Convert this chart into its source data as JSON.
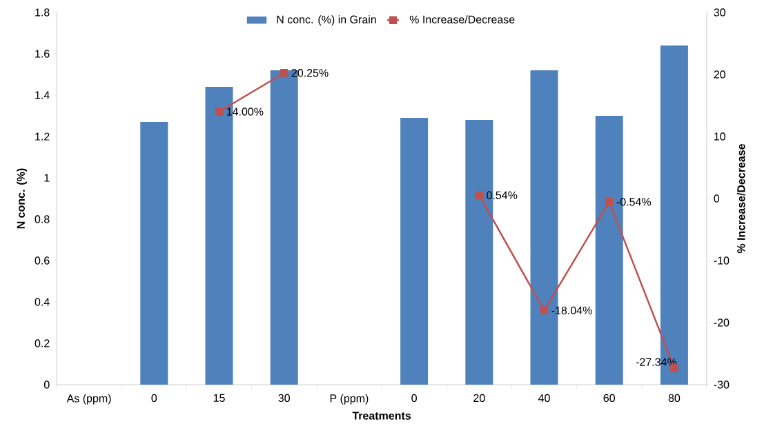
{
  "chart_data": {
    "type": "bar",
    "xlabel": "Treatments",
    "ylabel": "N conc. (%)",
    "y2label": "% Increase/Decrease",
    "categories": [
      "As (ppm)",
      "0",
      "15",
      "30",
      "P (ppm)",
      "0",
      "20",
      "40",
      "60",
      "80"
    ],
    "series": [
      {
        "name": "N conc. (%) in Grain",
        "color": "#4f81bd",
        "values": [
          null,
          1.27,
          1.44,
          1.52,
          null,
          1.29,
          1.28,
          1.52,
          1.3,
          1.64
        ]
      },
      {
        "name": "% Increase/Decrease",
        "type": "line",
        "axis": "y2",
        "color": "#c0504d",
        "marker": "square",
        "values": [
          null,
          null,
          14.0,
          20.25,
          null,
          null,
          0.54,
          -18.04,
          -0.54,
          -27.34
        ],
        "value_labels": [
          null,
          null,
          "14.00%",
          "20.25%",
          null,
          null,
          "0.54%",
          "-18.04%",
          "-0.54%",
          "-27.34%"
        ]
      }
    ],
    "ylim": [
      0,
      1.8
    ],
    "yticks": [
      0,
      0.2,
      0.4,
      0.6,
      0.8,
      1,
      1.2,
      1.4,
      1.6,
      1.8
    ],
    "y2lim": [
      -30,
      30
    ],
    "y2ticks": [
      -30,
      -20,
      -10,
      0,
      10,
      20,
      30
    ],
    "grid": false,
    "legend": "top"
  }
}
